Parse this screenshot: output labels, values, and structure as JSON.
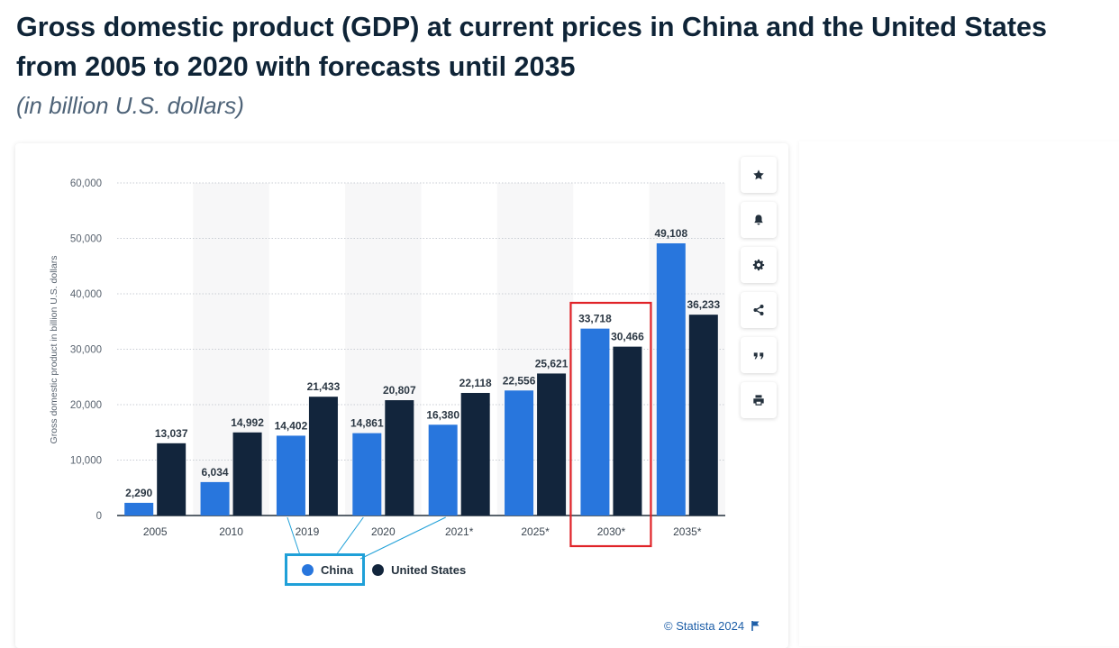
{
  "title": "Gross domestic product (GDP) at current prices in China and the United States from 2005 to 2020 with forecasts until 2035",
  "subtitle": "(in billion U.S. dollars)",
  "credit": "© Statista 2024",
  "toolbar": [
    "star-icon",
    "bell-icon",
    "gear-icon",
    "share-icon",
    "quote-icon",
    "print-icon"
  ],
  "colors": {
    "china": "#2876dd",
    "us": "#12253c",
    "highlight_red": "#e02328",
    "highlight_blue": "#1fa0d8"
  },
  "chart_data": {
    "type": "bar",
    "title": "",
    "xlabel": "",
    "ylabel": "Gross domestic product in billion U.S. dollars",
    "ylim": [
      0,
      60000
    ],
    "yticks": [
      "0",
      "10,000",
      "20,000",
      "30,000",
      "40,000",
      "50,000",
      "60,000"
    ],
    "categories": [
      "2005",
      "2010",
      "2019",
      "2020",
      "2021*",
      "2025*",
      "2030*",
      "2035*"
    ],
    "series": [
      {
        "name": "China",
        "values": [
          2290,
          6034,
          14402,
          14861,
          16380,
          22556,
          33718,
          49108
        ],
        "labels": [
          "2,290",
          "6,034",
          "14,402",
          "14,861",
          "16,380",
          "22,556",
          "33,718",
          "49,108"
        ]
      },
      {
        "name": "United States",
        "values": [
          13037,
          14992,
          21433,
          20807,
          22118,
          25621,
          30466,
          36233
        ],
        "labels": [
          "13,037",
          "14,992",
          "21,433",
          "20,807",
          "22,118",
          "25,621",
          "30,466",
          "36,233"
        ]
      }
    ],
    "grid": true,
    "legend": "bottom",
    "highlighted_category": "2030*"
  }
}
